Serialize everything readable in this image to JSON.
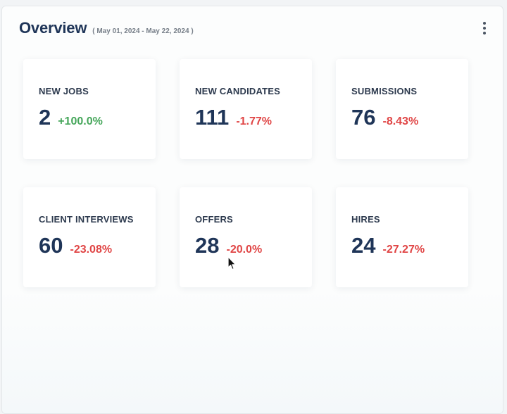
{
  "overview": {
    "title": "Overview",
    "date_range": "( May 01, 2024 - May 22, 2024 )"
  },
  "metrics": [
    {
      "label": "NEW JOBS",
      "value": "2",
      "change": "+100.0%",
      "trend": "positive"
    },
    {
      "label": "NEW CANDIDATES",
      "value": "111",
      "change": "-1.77%",
      "trend": "negative"
    },
    {
      "label": "SUBMISSIONS",
      "value": "76",
      "change": "-8.43%",
      "trend": "negative"
    },
    {
      "label": "CLIENT INTERVIEWS",
      "value": "60",
      "change": "-23.08%",
      "trend": "negative"
    },
    {
      "label": "OFFERS",
      "value": "28",
      "change": "-20.0%",
      "trend": "negative"
    },
    {
      "label": "HIRES",
      "value": "24",
      "change": "-27.27%",
      "trend": "negative"
    }
  ],
  "colors": {
    "title": "#1f3558",
    "positive": "#45a65a",
    "negative": "#e04545"
  },
  "icons": {
    "menu": "more-vertical-icon",
    "cursor": "mouse-pointer-icon"
  }
}
